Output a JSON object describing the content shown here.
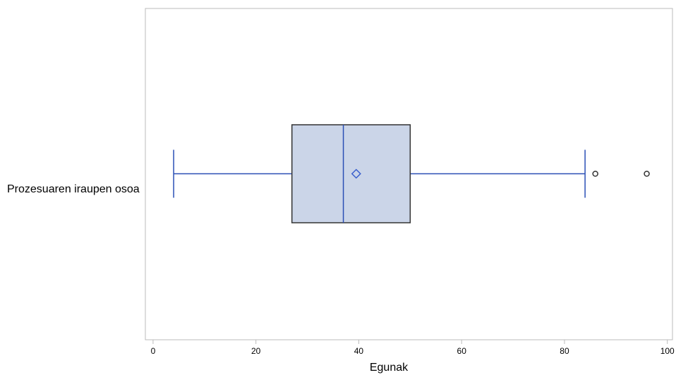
{
  "chart_data": {
    "type": "box",
    "orientation": "horizontal",
    "title": "",
    "xlabel": "Egunak",
    "ylabel": "",
    "xlim": [
      -1.5,
      101
    ],
    "x_ticks": [
      0,
      20,
      40,
      60,
      80,
      100
    ],
    "grid": false,
    "legend": "none",
    "categories": [
      "Prozesuaren iraupen osoa"
    ],
    "boxes": [
      {
        "category": "Prozesuaren iraupen osoa",
        "whisker_low": 4,
        "q1": 27,
        "median": 37,
        "mean": 39.5,
        "q3": 50,
        "whisker_high": 84,
        "outliers": [
          86,
          96
        ]
      }
    ],
    "colors": {
      "box_fill": "#cbd5e8",
      "box_outline": "#333333",
      "median_whisker": "#2a4fb5",
      "mean_marker": "#3a5fcd",
      "outlier": "#333333",
      "frame": "#bbbbbb"
    }
  }
}
